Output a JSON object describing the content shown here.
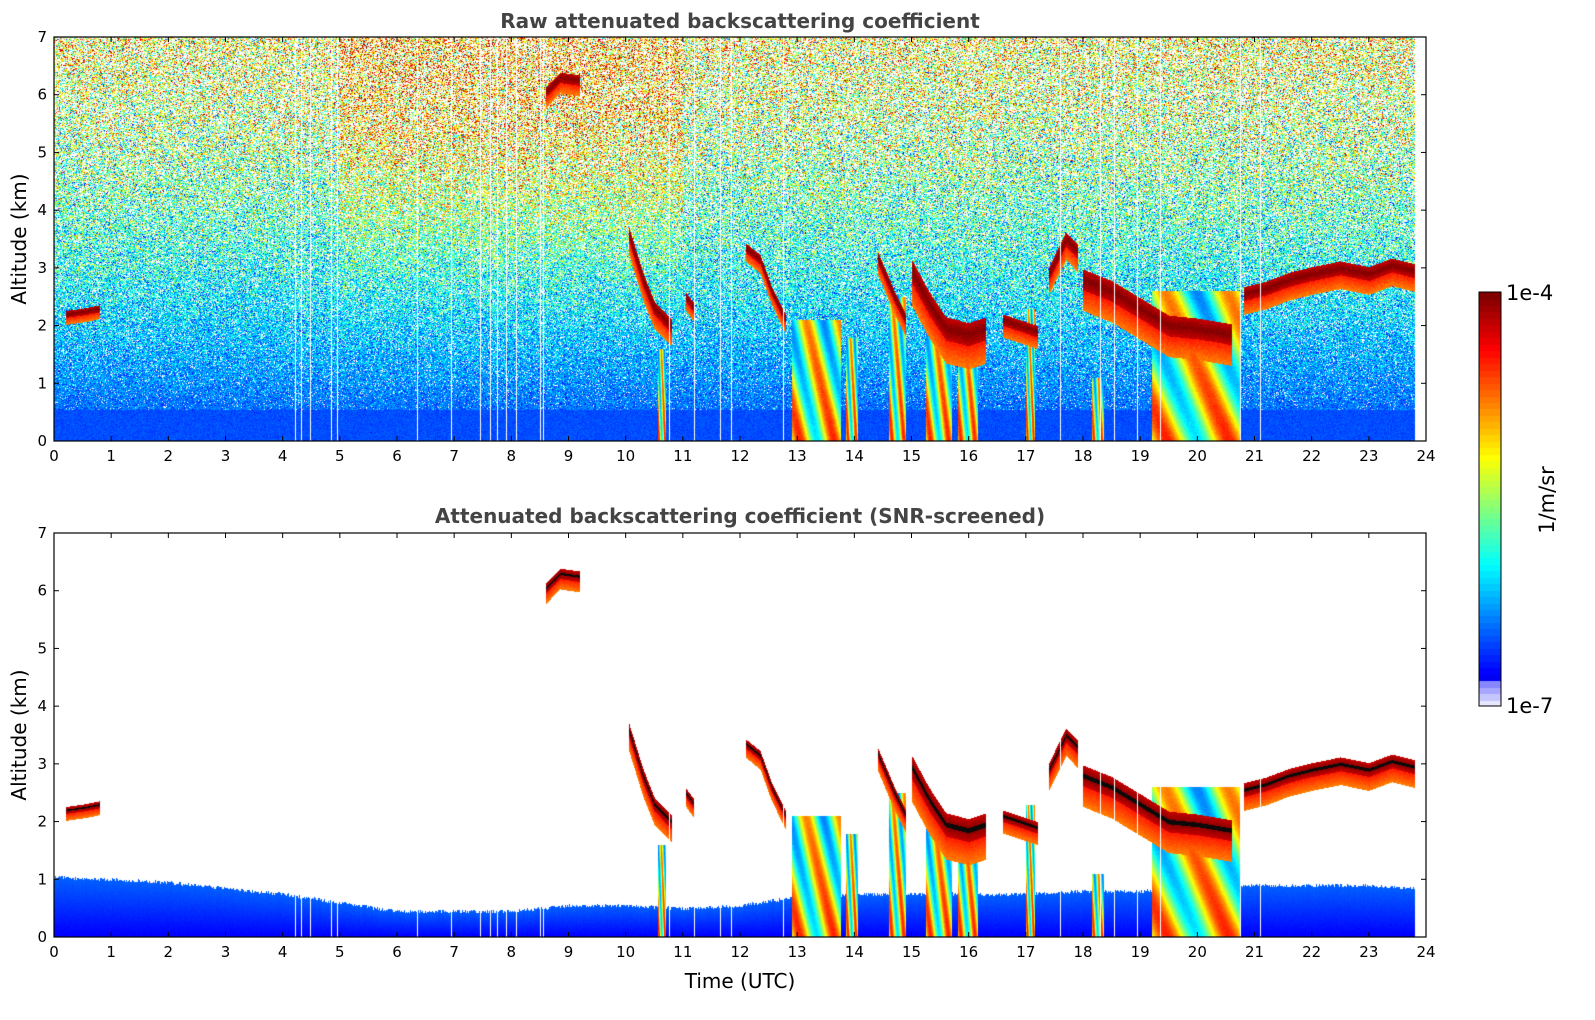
{
  "chart_data": [
    {
      "type": "heatmap",
      "title": "Raw attenuated backscattering coefficient",
      "xlabel": "",
      "ylabel": "Altitude (km)",
      "xlim": [
        0,
        24
      ],
      "ylim": [
        0,
        7
      ],
      "xticks": [
        "0",
        "1",
        "2",
        "3",
        "4",
        "5",
        "6",
        "7",
        "8",
        "9",
        "10",
        "11",
        "12",
        "13",
        "14",
        "15",
        "16",
        "17",
        "18",
        "19",
        "20",
        "21",
        "22",
        "23",
        "24"
      ],
      "yticks": [
        "0",
        "1",
        "2",
        "3",
        "4",
        "5",
        "6",
        "7"
      ],
      "colormap": "jet",
      "data_end_time": 23.8,
      "boundary_layer_top_km": 1.0,
      "noise": "high",
      "missing_profiles_at": [
        4.22,
        4.32,
        4.48,
        4.85,
        4.95,
        6.35,
        6.95,
        7.45,
        7.62,
        7.75,
        7.9,
        8.08,
        8.5,
        8.55,
        10.75,
        11.2,
        11.65,
        11.85,
        12.75,
        17.6,
        18.3,
        18.55,
        18.95,
        19.35,
        20.75,
        21.1
      ]
    },
    {
      "type": "heatmap",
      "title": "Attenuated backscattering coefficient (SNR-screened)",
      "xlabel": "Time (UTC)",
      "ylabel": "Altitude (km)",
      "xlim": [
        0,
        24
      ],
      "ylim": [
        0,
        7
      ],
      "xticks": [
        "0",
        "1",
        "2",
        "3",
        "4",
        "5",
        "6",
        "7",
        "8",
        "9",
        "10",
        "11",
        "12",
        "13",
        "14",
        "15",
        "16",
        "17",
        "18",
        "19",
        "20",
        "21",
        "22",
        "23",
        "24"
      ],
      "yticks": [
        "0",
        "1",
        "2",
        "3",
        "4",
        "5",
        "6",
        "7"
      ],
      "colormap": "jet",
      "data_end_time": 23.8,
      "noise": "none",
      "boundary_layer_top_km": [
        [
          0,
          1.05
        ],
        [
          1,
          1.0
        ],
        [
          2,
          0.95
        ],
        [
          3,
          0.85
        ],
        [
          4,
          0.75
        ],
        [
          5,
          0.6
        ],
        [
          6,
          0.45
        ],
        [
          7,
          0.45
        ],
        [
          8,
          0.45
        ],
        [
          9,
          0.55
        ],
        [
          10,
          0.55
        ],
        [
          11,
          0.5
        ],
        [
          12,
          0.55
        ],
        [
          13,
          0.7
        ],
        [
          14,
          0.75
        ],
        [
          15,
          0.75
        ],
        [
          16,
          0.75
        ],
        [
          17,
          0.75
        ],
        [
          18,
          0.8
        ],
        [
          19,
          0.8
        ],
        [
          20,
          0.85
        ],
        [
          21,
          0.9
        ],
        [
          22,
          0.9
        ],
        [
          23,
          0.9
        ],
        [
          23.8,
          0.85
        ]
      ]
    }
  ],
  "clouds": {
    "layers": [
      {
        "path": [
          [
            0.2,
            2.2
          ],
          [
            0.55,
            2.25
          ],
          [
            0.8,
            2.3
          ]
        ],
        "thick": 0.06
      },
      {
        "path": [
          [
            8.6,
            6.05
          ],
          [
            8.85,
            6.3
          ],
          [
            9.2,
            6.25
          ]
        ],
        "thick": 0.09
      },
      {
        "path": [
          [
            10.05,
            3.6
          ],
          [
            10.3,
            2.8
          ],
          [
            10.5,
            2.3
          ],
          [
            10.8,
            2.0
          ]
        ],
        "thick": 0.12
      },
      {
        "path": [
          [
            11.05,
            2.5
          ],
          [
            11.2,
            2.3
          ]
        ],
        "thick": 0.08
      },
      {
        "path": [
          [
            12.1,
            3.35
          ],
          [
            12.35,
            3.15
          ],
          [
            12.55,
            2.6
          ],
          [
            12.8,
            2.1
          ]
        ],
        "thick": 0.08
      },
      {
        "path": [
          [
            14.4,
            3.2
          ],
          [
            14.7,
            2.5
          ],
          [
            14.9,
            2.1
          ]
        ],
        "thick": 0.1
      },
      {
        "path": [
          [
            15.0,
            2.95
          ],
          [
            15.3,
            2.4
          ],
          [
            15.6,
            1.95
          ],
          [
            16.0,
            1.85
          ],
          [
            16.3,
            1.95
          ]
        ],
        "thick": 0.2
      },
      {
        "path": [
          [
            16.6,
            2.1
          ],
          [
            16.9,
            2.0
          ],
          [
            17.2,
            1.9
          ]
        ],
        "thick": 0.1
      },
      {
        "path": [
          [
            17.4,
            2.9
          ],
          [
            17.55,
            3.2
          ],
          [
            17.7,
            3.5
          ],
          [
            17.9,
            3.3
          ]
        ],
        "thick": 0.12
      },
      {
        "path": [
          [
            18.0,
            2.8
          ],
          [
            18.5,
            2.6
          ],
          [
            19.0,
            2.3
          ],
          [
            19.5,
            2.0
          ],
          [
            20.0,
            1.95
          ],
          [
            20.6,
            1.85
          ]
        ],
        "thick": 0.18
      },
      {
        "path": [
          [
            20.8,
            2.55
          ],
          [
            21.2,
            2.65
          ],
          [
            21.6,
            2.8
          ],
          [
            22.0,
            2.9
          ],
          [
            22.5,
            3.0
          ],
          [
            23.0,
            2.9
          ],
          [
            23.4,
            3.05
          ],
          [
            23.8,
            2.95
          ]
        ],
        "thick": 0.12
      }
    ],
    "precip": [
      {
        "t0": 12.9,
        "t1": 13.75,
        "top": 2.1
      },
      {
        "t0": 13.85,
        "t1": 14.05,
        "top": 1.8
      },
      {
        "t0": 14.6,
        "t1": 14.9,
        "top": 2.5
      },
      {
        "t0": 15.25,
        "t1": 15.7,
        "top": 2.0
      },
      {
        "t0": 15.8,
        "t1": 16.15,
        "top": 2.0
      },
      {
        "t0": 17.0,
        "t1": 17.15,
        "top": 2.3
      },
      {
        "t0": 18.15,
        "t1": 18.35,
        "top": 1.1
      },
      {
        "t0": 19.2,
        "t1": 20.75,
        "top": 2.6
      },
      {
        "t0": 10.55,
        "t1": 10.7,
        "top": 1.6
      }
    ]
  },
  "colorbar": {
    "label": "1/m/sr",
    "max_label": "1e-4",
    "min_label": "1e-7",
    "scale": "log"
  }
}
